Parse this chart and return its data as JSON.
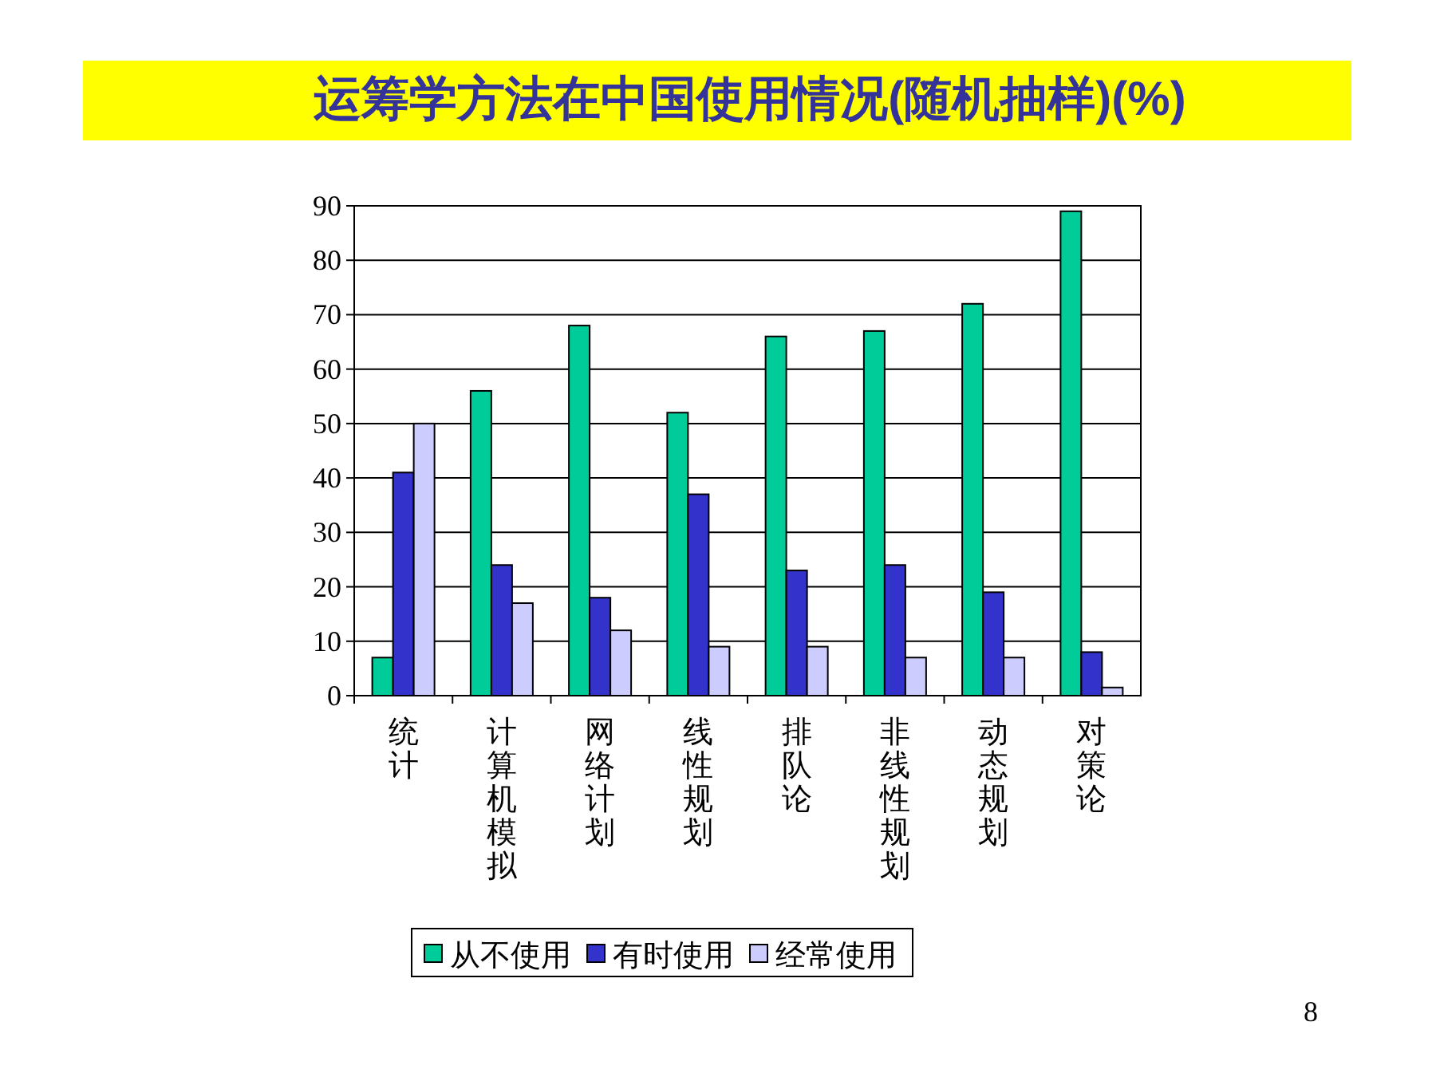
{
  "chart_data": {
    "type": "bar",
    "title": "运筹学方法在中国使用情况(随机抽样)(%)",
    "categories": [
      "统计",
      "计算机模拟",
      "网络计划",
      "线性规划",
      "排队论",
      "非线性规划",
      "动态规划",
      "对策论"
    ],
    "series": [
      {
        "name": "从不使用",
        "color": "#00cc99",
        "values": [
          7,
          56,
          68,
          52,
          66,
          67,
          72,
          89
        ]
      },
      {
        "name": "有时使用",
        "color": "#3333cc",
        "values": [
          41,
          24,
          18,
          37,
          23,
          24,
          19,
          8
        ]
      },
      {
        "name": "经常使用",
        "color": "#ccccff",
        "values": [
          50,
          17,
          12,
          9,
          9,
          7,
          7,
          1.5
        ]
      }
    ],
    "ylim": [
      0,
      90
    ],
    "yticks": [
      0,
      10,
      20,
      30,
      40,
      50,
      60,
      70,
      80,
      90
    ],
    "grid": "y",
    "legend": "bottom",
    "annotations": [
      "8"
    ]
  }
}
